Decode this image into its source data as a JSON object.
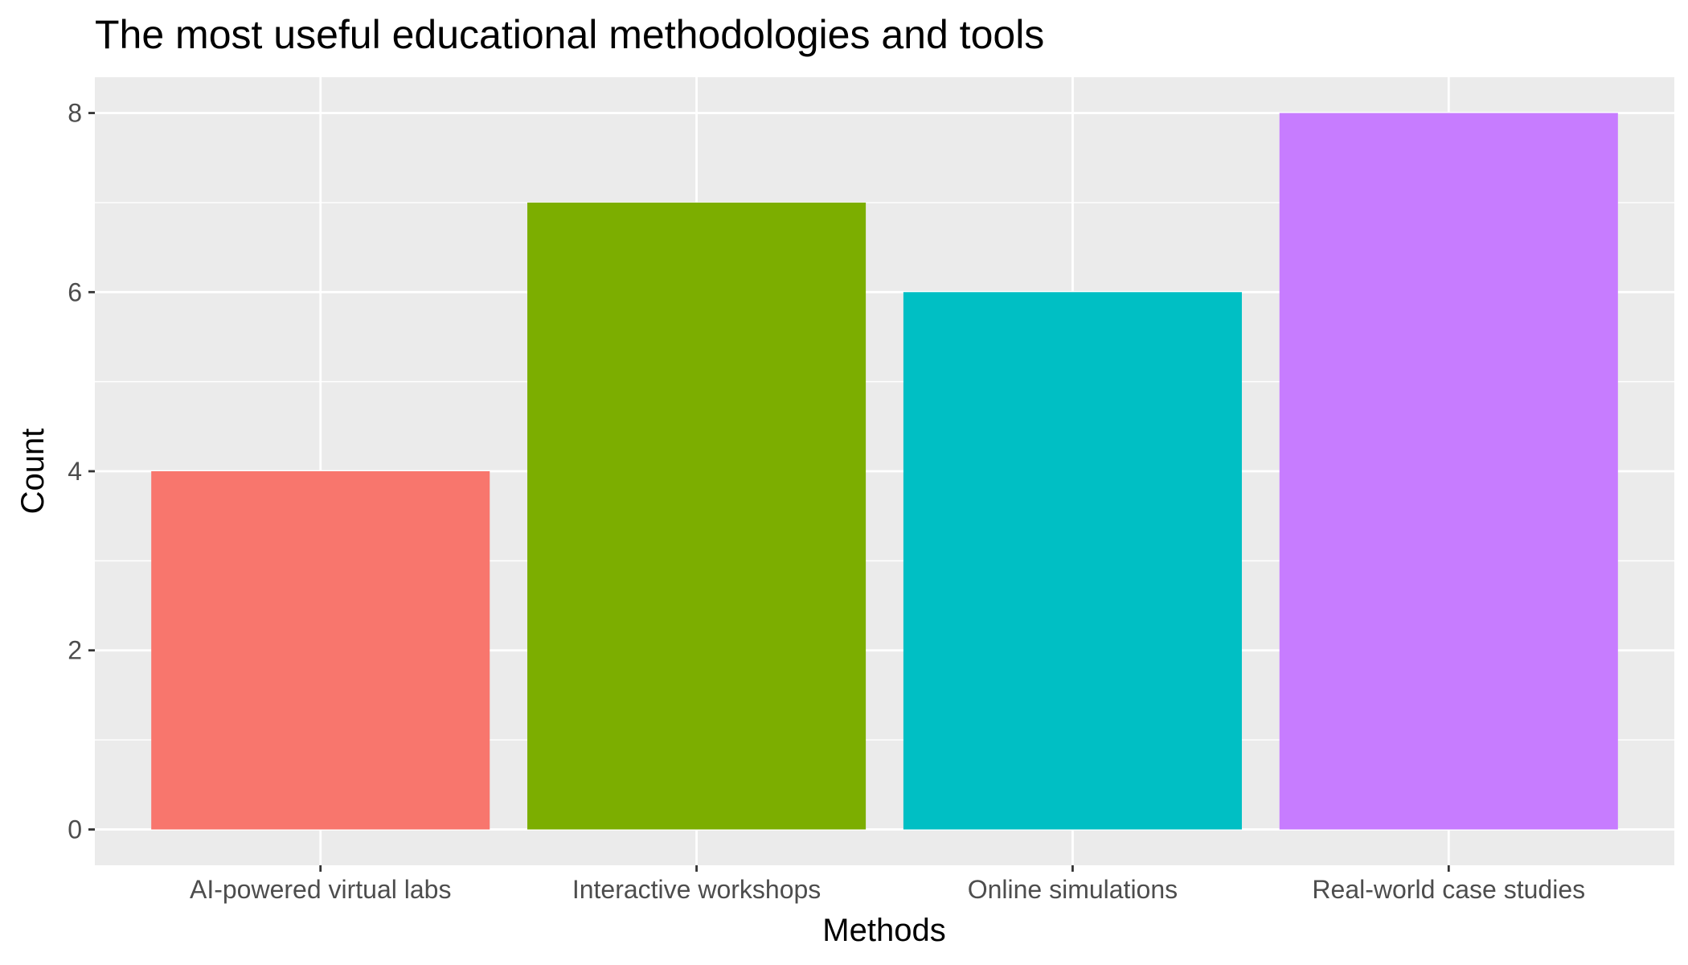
{
  "chart_data": {
    "type": "bar",
    "title": "The most useful educational methodologies and tools",
    "xlabel": "Methods",
    "ylabel": "Count",
    "categories": [
      "AI-powered virtual labs",
      "Interactive workshops",
      "Online simulations",
      "Real-world case studies"
    ],
    "values": [
      4,
      7,
      6,
      8
    ],
    "colors": [
      "#F8766D",
      "#7CAE00",
      "#00BFC4",
      "#C77CFF"
    ],
    "ylim": [
      -0.4,
      8.4
    ],
    "yticks": [
      0,
      2,
      4,
      6,
      8
    ],
    "ytick_labels": [
      "0",
      "2",
      "4",
      "6",
      "8"
    ],
    "grid": true,
    "legend": "none",
    "theme": {
      "panel_background": "#EBEBEB",
      "grid_color": "#FFFFFF",
      "tick_color": "#333333"
    }
  }
}
